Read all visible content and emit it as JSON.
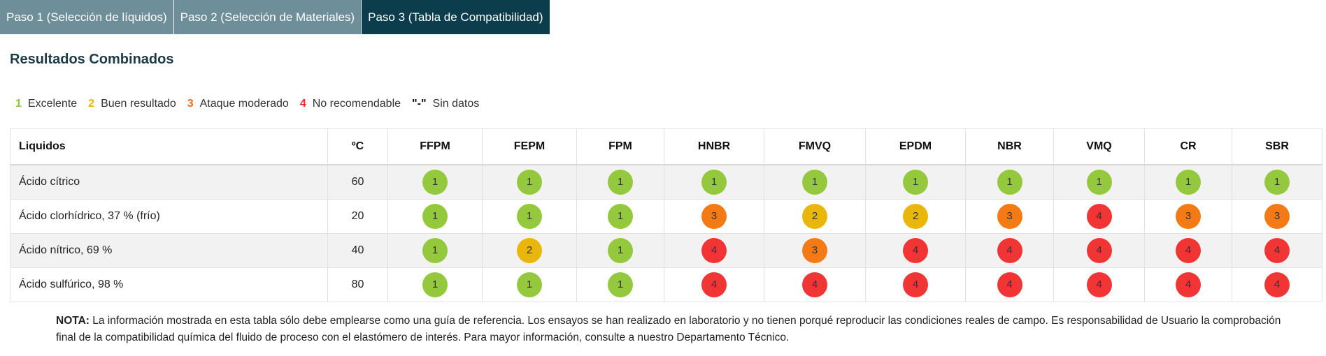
{
  "tabs": [
    {
      "label": "Paso 1 (Selección de líquidos)",
      "active": false
    },
    {
      "label": "Paso 2 (Selección de Materiales)",
      "active": false
    },
    {
      "label": "Paso 3 (Tabla de Compatibilidad)",
      "active": true
    }
  ],
  "page": {
    "title": "Resultados Combinados"
  },
  "legend": [
    {
      "num": "1",
      "label": "Excelente",
      "color": "#8cc63f"
    },
    {
      "num": "2",
      "label": "Buen resultado",
      "color": "#e6b800"
    },
    {
      "num": "3",
      "label": "Ataque moderado",
      "color": "#f26b1d"
    },
    {
      "num": "4",
      "label": "No recomendable",
      "color": "#ee2a2a"
    },
    {
      "num": "\"-\"",
      "label": "Sin datos",
      "color": "#111111"
    }
  ],
  "colors": {
    "1": "#95c93d",
    "2": "#e9b60c",
    "3": "#f47a16",
    "4": "#f13434"
  },
  "table": {
    "headers": [
      "Liquidos",
      "ºC",
      "FFPM",
      "FEPM",
      "FPM",
      "HNBR",
      "FMVQ",
      "EPDM",
      "NBR",
      "VMQ",
      "CR",
      "SBR"
    ],
    "rows": [
      {
        "liquid": "Ácido cítrico",
        "temp": "60",
        "values": [
          "1",
          "1",
          "1",
          "1",
          "1",
          "1",
          "1",
          "1",
          "1",
          "1"
        ]
      },
      {
        "liquid": "Ácido clorhídrico, 37 % (frío)",
        "temp": "20",
        "values": [
          "1",
          "1",
          "1",
          "3",
          "2",
          "2",
          "3",
          "4",
          "3",
          "3"
        ]
      },
      {
        "liquid": "Ácido nítrico, 69 %",
        "temp": "40",
        "values": [
          "1",
          "2",
          "1",
          "4",
          "3",
          "4",
          "4",
          "4",
          "4",
          "4"
        ]
      },
      {
        "liquid": "Ácido sulfúrico, 98 %",
        "temp": "80",
        "values": [
          "1",
          "1",
          "1",
          "4",
          "4",
          "4",
          "4",
          "4",
          "4",
          "4"
        ]
      }
    ]
  },
  "note": {
    "label": "NOTA:",
    "text": " La información mostrada en esta tabla sólo debe emplearse como una guía de referencia. Los ensayos se han realizado en laboratorio y no tienen porqué reproducir las condiciones reales de campo. Es responsabilidad de Usuario la comprobación final de la compatibilidad química del fluido de proceso con el elastómero de interés. Para mayor información, consulte a nuestro Departamento Técnico."
  }
}
